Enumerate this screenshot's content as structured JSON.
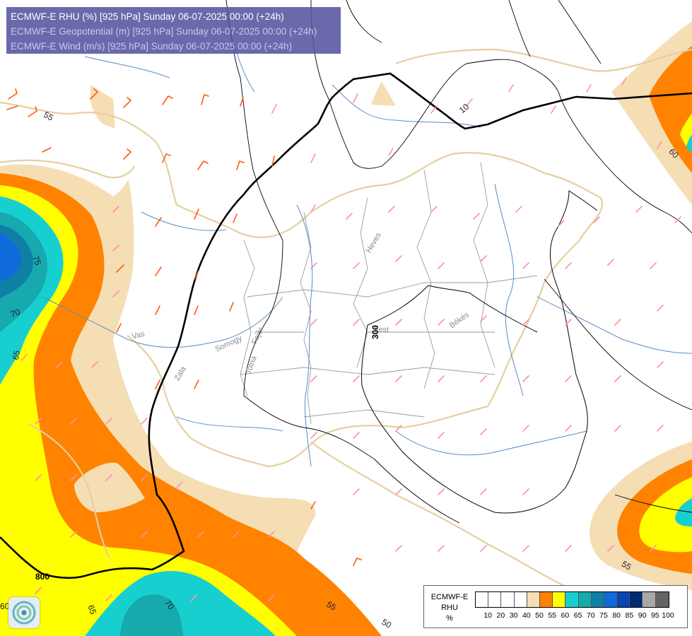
{
  "header": {
    "lines": [
      "ECMWF-E RHU (%) [925 hPa] Sunday 06-07-2025 00:00 (+24h)",
      "ECMWF-E Geopotential (m) [925 hPa] Sunday 06-07-2025 00:00 (+24h)",
      "ECMWF-E Wind (m/s) [925 hPa] Sunday 06-07-2025 00:00 (+24h)"
    ]
  },
  "legend": {
    "title_lines": [
      "ECMWF-E",
      "RHU",
      "%"
    ],
    "ticks": [
      "10",
      "20",
      "30",
      "40",
      "50",
      "55",
      "60",
      "65",
      "70",
      "75",
      "80",
      "85",
      "90",
      "95",
      "100"
    ],
    "colors": [
      "#ffffff",
      "#ffffff",
      "#ffffff",
      "#ffffff",
      "#f5deb3",
      "#ff8200",
      "#ffff00",
      "#18cfcf",
      "#16a9ad",
      "#0f7fa5",
      "#0f6bdc",
      "#0a44b0",
      "#002a72",
      "#a8a8a8",
      "#646464"
    ]
  },
  "contour_labels": {
    "rhu": [
      "75",
      "70",
      "65",
      "60",
      "55",
      "55",
      "65",
      "70",
      "50",
      "55",
      "60",
      "10"
    ],
    "geopotential": [
      "800",
      "300"
    ]
  },
  "region_labels": [
    "Heves",
    "Pest",
    "Békés",
    "Fejér",
    "Somogy",
    "Tolna",
    "Vas",
    "Zala"
  ],
  "colors": {
    "rhu_50": "#f5deb3",
    "rhu_55": "#ff8200",
    "rhu_60": "#ffff00",
    "rhu_65": "#18cfcf",
    "rhu_70": "#16a9ad",
    "rhu_75": "#0f7fa5",
    "rhu_80": "#0f6bdc",
    "border": "#e6cfa0",
    "rivers": "#5a8cc8",
    "county_lines": "#9b9b9b",
    "geopotential_contour": "#000000",
    "wind_barbs_strong": "#ff5a14",
    "wind_barbs_weak": "#ff8fb0"
  },
  "icons": [
    "logo-icon"
  ]
}
